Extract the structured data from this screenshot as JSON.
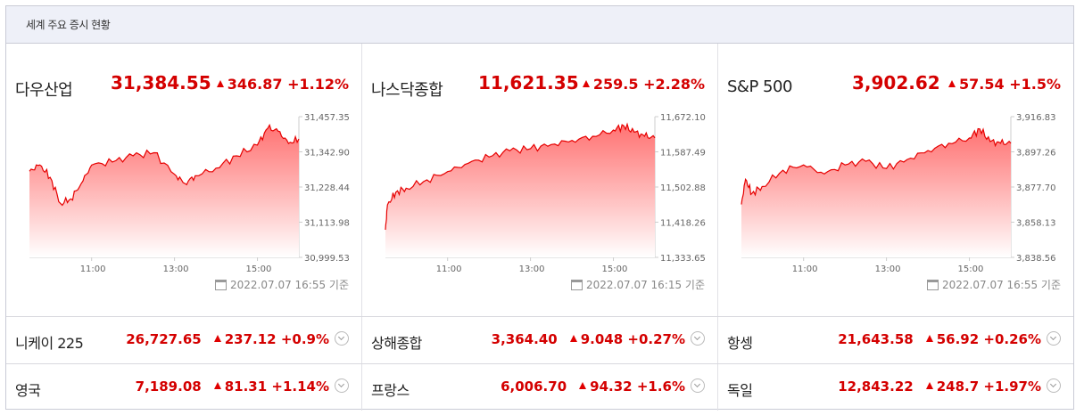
{
  "header": {
    "title": "세계 주요 증시 현황"
  },
  "colors": {
    "up": "#d40000",
    "line": "#e60000",
    "fill_top": "#ff6b6b",
    "fill_bottom": "#ffffff"
  },
  "panels": [
    {
      "name": "다우산업",
      "value": "31,384.55",
      "change": "346.87",
      "pct": "+1.12%",
      "stamp": "2022.07.07 16:55 기준"
    },
    {
      "name": "나스닥종합",
      "value": "11,621.35",
      "change": "259.5",
      "pct": "+2.28%",
      "stamp": "2022.07.07 16:15 기준"
    },
    {
      "name": "S&P 500",
      "value": "3,902.62",
      "change": "57.54",
      "pct": "+1.5%",
      "stamp": "2022.07.07 16:55 기준"
    }
  ],
  "rows": [
    [
      {
        "name": "니케이 225",
        "value": "26,727.65",
        "change": "237.12",
        "pct": "+0.9%"
      },
      {
        "name": "상해종합",
        "value": "3,364.40",
        "change": "9.048",
        "pct": "+0.27%"
      },
      {
        "name": "항셍",
        "value": "21,643.58",
        "change": "56.92",
        "pct": "+0.26%"
      }
    ],
    [
      {
        "name": "영국",
        "value": "7,189.08",
        "change": "81.31",
        "pct": "+1.14%"
      },
      {
        "name": "프랑스",
        "value": "6,006.70",
        "change": "94.32",
        "pct": "+1.6%"
      },
      {
        "name": "독일",
        "value": "12,843.22",
        "change": "248.7",
        "pct": "+1.97%"
      }
    ]
  ],
  "chart_data": [
    {
      "type": "area",
      "title": "다우산업",
      "x_ticks": [
        "11:00",
        "13:00",
        "15:00"
      ],
      "y_ticks": [
        "31,457.35",
        "31,342.90",
        "31,228.44",
        "31,113.98",
        "30,999.53"
      ],
      "ylim": [
        30999.53,
        31457.35
      ],
      "x_hours": [
        9.5,
        9.75,
        10.0,
        10.25,
        10.5,
        10.75,
        11.0,
        11.5,
        12.0,
        12.5,
        13.0,
        13.25,
        13.5,
        14.0,
        14.5,
        15.0,
        15.25,
        15.5,
        15.75,
        16.0
      ],
      "values": [
        31280,
        31300,
        31260,
        31175,
        31190,
        31240,
        31300,
        31310,
        31330,
        31340,
        31270,
        31240,
        31265,
        31290,
        31330,
        31365,
        31420,
        31410,
        31370,
        31385
      ]
    },
    {
      "type": "area",
      "title": "나스닥종합",
      "x_ticks": [
        "11:00",
        "13:00",
        "15:00"
      ],
      "y_ticks": [
        "11,672.10",
        "11,587.49",
        "11,502.88",
        "11,418.26",
        "11,333.65"
      ],
      "ylim": [
        11333.65,
        11672.1
      ],
      "x_hours": [
        9.5,
        9.55,
        9.75,
        10.0,
        10.5,
        11.0,
        11.5,
        12.0,
        12.5,
        13.0,
        13.5,
        14.0,
        14.5,
        15.0,
        15.25,
        15.5,
        15.75,
        16.0
      ],
      "values": [
        11400,
        11460,
        11490,
        11500,
        11520,
        11540,
        11560,
        11575,
        11590,
        11595,
        11605,
        11615,
        11625,
        11640,
        11650,
        11635,
        11625,
        11621
      ]
    },
    {
      "type": "area",
      "title": "S&P 500",
      "x_ticks": [
        "11:00",
        "13:00",
        "15:00"
      ],
      "y_ticks": [
        "3,916.83",
        "3,897.26",
        "3,877.70",
        "3,858.13",
        "3,838.56"
      ],
      "ylim": [
        3838.56,
        3916.83
      ],
      "x_hours": [
        9.5,
        9.6,
        9.75,
        10.0,
        10.5,
        11.0,
        11.5,
        12.0,
        12.5,
        13.0,
        13.5,
        14.0,
        14.5,
        15.0,
        15.25,
        15.5,
        15.75,
        16.0
      ],
      "values": [
        3868,
        3882,
        3874,
        3878,
        3887,
        3890,
        3885,
        3890,
        3892,
        3888,
        3893,
        3898,
        3902,
        3905,
        3910,
        3903,
        3902,
        3902
      ]
    }
  ]
}
